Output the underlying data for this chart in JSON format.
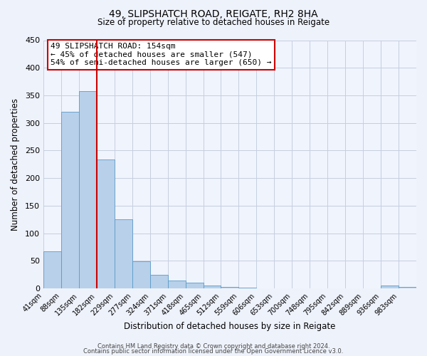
{
  "title": "49, SLIPSHATCH ROAD, REIGATE, RH2 8HA",
  "subtitle": "Size of property relative to detached houses in Reigate",
  "xlabel": "Distribution of detached houses by size in Reigate",
  "ylabel": "Number of detached properties",
  "bin_labels": [
    "41sqm",
    "88sqm",
    "135sqm",
    "182sqm",
    "229sqm",
    "277sqm",
    "324sqm",
    "371sqm",
    "418sqm",
    "465sqm",
    "512sqm",
    "559sqm",
    "606sqm",
    "653sqm",
    "700sqm",
    "748sqm",
    "795sqm",
    "842sqm",
    "889sqm",
    "936sqm",
    "983sqm"
  ],
  "bar_values": [
    68,
    320,
    358,
    234,
    126,
    49,
    25,
    15,
    11,
    5,
    3,
    1,
    0,
    0,
    0,
    0,
    0,
    0,
    0,
    5,
    3
  ],
  "bar_color": "#b8d0ea",
  "bar_edge_color": "#5a9bc8",
  "vline_color": "#cc0000",
  "ylim": [
    0,
    450
  ],
  "yticks": [
    0,
    50,
    100,
    150,
    200,
    250,
    300,
    350,
    400,
    450
  ],
  "annotation_title": "49 SLIPSHATCH ROAD: 154sqm",
  "annotation_line1": "← 45% of detached houses are smaller (547)",
  "annotation_line2": "54% of semi-detached houses are larger (650) →",
  "footer_line1": "Contains HM Land Registry data © Crown copyright and database right 2024.",
  "footer_line2": "Contains public sector information licensed under the Open Government Licence v3.0.",
  "bg_color": "#eef2fb",
  "plot_bg_color": "#f0f4fd",
  "grid_color": "#c5cfe0"
}
